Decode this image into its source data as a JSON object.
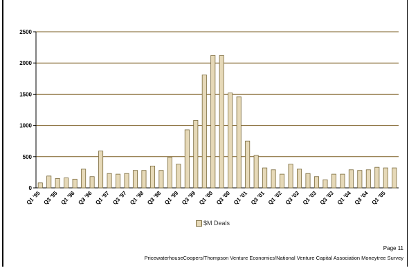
{
  "chart_data": {
    "type": "bar",
    "ylim": [
      0,
      2500
    ],
    "yticks": [
      0,
      500,
      1000,
      1500,
      2000,
      2500
    ],
    "grid": true,
    "legend_position": "bottom",
    "categories": [
      "Q1 '95",
      "Q2 '95",
      "Q3 '95",
      "Q4 '95",
      "Q1 '96",
      "Q2 '96",
      "Q3 '96",
      "Q4 '96",
      "Q1 '97",
      "Q2 '97",
      "Q3 '97",
      "Q4 '97",
      "Q1 '98",
      "Q2 '98",
      "Q3 '98",
      "Q4 '98",
      "Q1 '99",
      "Q2 '99",
      "Q3 '99",
      "Q4 '99",
      "Q1 '00",
      "Q2 '00",
      "Q3 '00",
      "Q4 '00",
      "Q1 '01",
      "Q2 '01",
      "Q3 '01",
      "Q4 '01",
      "Q1 '02",
      "Q2 '02",
      "Q3 '02",
      "Q4 '02",
      "Q1 '03",
      "Q2 '03",
      "Q3 '03",
      "Q4 '03",
      "Q1 '04",
      "Q2 '04",
      "Q3 '04",
      "Q4 '04",
      "Q1 '05",
      "Q2 '05"
    ],
    "xtick_labels": [
      "Q1 '95",
      "Q3 '95",
      "Q1 '96",
      "Q3 '96",
      "Q1 '97",
      "Q3 '97",
      "Q1 '98",
      "Q3 '98",
      "Q1 '99",
      "Q3 '99",
      "Q1 '00",
      "Q3 '00",
      "Q1 '01",
      "Q3 '01",
      "Q1 '02",
      "Q3 '02",
      "Q1 '03",
      "Q3 '03",
      "Q1 '04",
      "Q3 '04",
      "Q1 '05"
    ],
    "series": [
      {
        "name": "$M Deals",
        "color": "#e6d9b8",
        "values": [
          80,
          190,
          150,
          160,
          140,
          300,
          180,
          590,
          230,
          220,
          230,
          280,
          280,
          350,
          280,
          490,
          380,
          930,
          1080,
          1810,
          2120,
          2120,
          1520,
          1460,
          750,
          520,
          320,
          290,
          220,
          380,
          300,
          230,
          180,
          130,
          220,
          220,
          290,
          280,
          290,
          330,
          320,
          320
        ]
      }
    ]
  },
  "footer": {
    "page": "Page 11",
    "source": "PricewaterhouseCoopers/Thompson Venture Economics/National Venture Capital Association Moneytree Survey"
  }
}
